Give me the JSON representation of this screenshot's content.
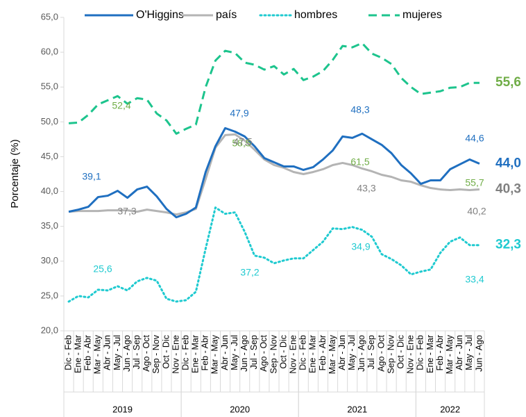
{
  "chart_data": {
    "type": "line",
    "y_label": "Porcentaje (%)",
    "categories": [
      "Dic - Feb",
      "Ene - Mar",
      "Feb - Abr",
      "Mar - May",
      "Abr - Jun",
      "May - Jul",
      "Jun - Ago",
      "Jul - Sep",
      "Ago - Oct",
      "Sep - Nov",
      "Oct - Dic",
      "Nov - Ene",
      "Dic - Feb",
      "Ene - Mar",
      "Feb - Abr",
      "Mar - May",
      "Abr - Jun",
      "May - Jul",
      "Jun - Ago",
      "Jul - Sep",
      "Ago - Oct",
      "Sep - Nov",
      "Oct - Dic",
      "Nov - Ene",
      "Dic - Feb",
      "Ene - Mar",
      "Feb - Abr",
      "Mar - May",
      "Abr - Jun",
      "May - Jul",
      "Jun - Ago",
      "Jul - Sep",
      "Ago - Oct",
      "Sep - Nov",
      "Oct - Dic",
      "Nov - Ene",
      "Dic - Feb",
      "Ene - Mar",
      "Feb - Abr",
      "Mar - May",
      "Abr - Jun",
      "May - Jul",
      "Jun - Ago"
    ],
    "groups": [
      {
        "label": "2019",
        "count": 12
      },
      {
        "label": "2020",
        "count": 12
      },
      {
        "label": "2021",
        "count": 12
      },
      {
        "label": "2022",
        "count": 7
      }
    ],
    "ylim": [
      20,
      65
    ],
    "yticks": [
      {
        "value": 20,
        "label": "20,0"
      },
      {
        "value": 25,
        "label": "25,0"
      },
      {
        "value": 30,
        "label": "30,0"
      },
      {
        "value": 35,
        "label": "35,0"
      },
      {
        "value": 40,
        "label": "40,0"
      },
      {
        "value": 45,
        "label": "45,0"
      },
      {
        "value": 50,
        "label": "50,0"
      },
      {
        "value": 55,
        "label": "55,0"
      },
      {
        "value": 60,
        "label": "60,0"
      },
      {
        "value": 65,
        "label": "65,0"
      }
    ],
    "series": [
      {
        "name": "O'Higgins",
        "color": "#1f6fc0",
        "dash": "solid",
        "end_label": "44,0",
        "values": [
          37.1,
          37.4,
          37.8,
          39.2,
          39.4,
          40.1,
          39.1,
          40.3,
          40.7,
          39.3,
          37.5,
          36.3,
          36.8,
          37.7,
          42.8,
          46.5,
          49.1,
          48.6,
          47.9,
          46.5,
          44.8,
          44.2,
          43.6,
          43.6,
          43.1,
          43.5,
          44.6,
          45.9,
          47.9,
          47.7,
          48.3,
          47.5,
          46.7,
          45.5,
          43.8,
          42.6,
          41.1,
          41.6,
          41.6,
          43.2,
          43.9,
          44.6,
          44.0
        ]
      },
      {
        "name": "país",
        "color": "#b4b4b4",
        "dash": "solid",
        "end_label": "40,3",
        "values": [
          37.1,
          37.2,
          37.2,
          37.2,
          37.3,
          37.3,
          37.3,
          37.1,
          37.4,
          37.2,
          37.0,
          36.7,
          37.0,
          37.5,
          41.8,
          46.3,
          48.1,
          48.2,
          47.3,
          46.0,
          44.6,
          43.8,
          43.4,
          42.8,
          42.5,
          42.8,
          43.2,
          43.8,
          44.1,
          43.8,
          43.3,
          42.9,
          42.4,
          42.1,
          41.6,
          41.4,
          40.9,
          40.5,
          40.3,
          40.2,
          40.3,
          40.2,
          40.3
        ]
      },
      {
        "name": "hombres",
        "color": "#1fcad0",
        "dash": "dot",
        "end_label": "32,3",
        "values": [
          24.2,
          25.0,
          24.8,
          25.9,
          25.8,
          26.4,
          25.8,
          27.1,
          27.6,
          27.2,
          24.6,
          24.2,
          24.4,
          25.6,
          31.8,
          37.7,
          36.8,
          37.0,
          34.2,
          30.8,
          30.5,
          29.7,
          30.1,
          30.4,
          30.4,
          31.6,
          32.8,
          34.7,
          34.6,
          34.9,
          34.5,
          33.5,
          31.0,
          30.3,
          29.4,
          28.1,
          28.5,
          28.8,
          31.2,
          32.8,
          33.4,
          32.3,
          32.3
        ]
      },
      {
        "name": "mujeres",
        "color": "#1dc48d",
        "dash": "dash",
        "end_label": "55,6",
        "values": [
          49.8,
          49.9,
          51.0,
          52.5,
          53.1,
          53.7,
          52.6,
          53.4,
          53.2,
          51.2,
          50.2,
          48.3,
          49.0,
          49.6,
          55.0,
          58.8,
          60.2,
          59.9,
          58.5,
          58.2,
          57.5,
          58.0,
          56.8,
          57.6,
          56.0,
          56.5,
          57.3,
          58.9,
          60.9,
          60.7,
          61.3,
          59.8,
          59.2,
          58.3,
          56.3,
          55.0,
          54.0,
          54.2,
          54.4,
          54.9,
          55.0,
          55.6,
          55.6
        ]
      }
    ],
    "annotations": [
      {
        "text": "52,4",
        "series": 3
      },
      {
        "text": "58,5",
        "series": 3
      },
      {
        "text": "61,5",
        "series": 3
      },
      {
        "text": "55,7",
        "series": 3
      },
      {
        "text": "39,1",
        "series": 0
      },
      {
        "text": "47,9",
        "series": 0
      },
      {
        "text": "48,3",
        "series": 0
      },
      {
        "text": "44,6",
        "series": 0
      },
      {
        "text": "37,3",
        "series": 1
      },
      {
        "text": "47,5",
        "series": 1
      },
      {
        "text": "43,3",
        "series": 1
      },
      {
        "text": "40,2",
        "series": 1
      },
      {
        "text": "25,6",
        "series": 2
      },
      {
        "text": "37,2",
        "series": 2
      },
      {
        "text": "34,9",
        "series": 2
      },
      {
        "text": "33,4",
        "series": 2
      }
    ],
    "end_label_colors": [
      "#1f6fc0",
      "#808080",
      "#1fcad0",
      "#70ad47"
    ],
    "annotation_colors": [
      "#1f6fc0",
      "#808080",
      "#1fcad0",
      "#70ad47"
    ]
  }
}
